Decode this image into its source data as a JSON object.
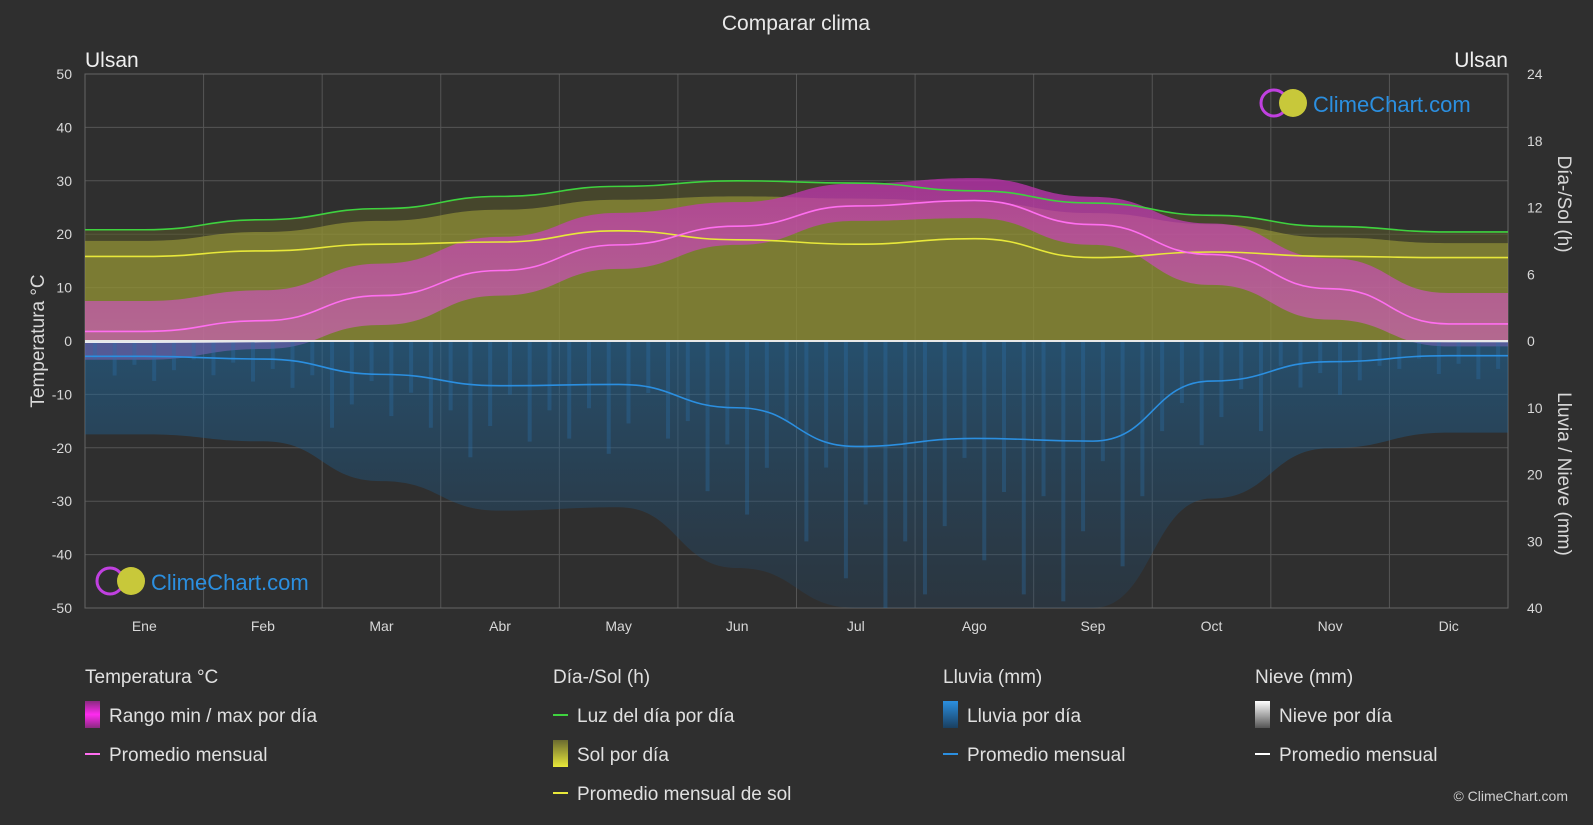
{
  "title": "Comparar clima",
  "location_left": "Ulsan",
  "location_right": "Ulsan",
  "copyright": "© ClimeChart.com",
  "brand": "ClimeChart.com",
  "colors": {
    "background": "#2f2f2f",
    "temp_band": "#d23fc8",
    "temp_avg": "#ff6ef0",
    "daylight": "#3fd23f",
    "sun_band": "#a8a83a",
    "sun_avg": "#e8e83a",
    "rain_band": "#1f5f8f",
    "rain_avg": "#2b8fe0",
    "snow_avg": "#ffffff",
    "brand": "#2b8fe0"
  },
  "chart_data": {
    "type": "line",
    "title": "Comparar clima",
    "categories": [
      "Ene",
      "Feb",
      "Mar",
      "Abr",
      "May",
      "Jun",
      "Jul",
      "Ago",
      "Sep",
      "Oct",
      "Nov",
      "Dic"
    ],
    "left_axis": {
      "label": "Temperatura °C",
      "range": [
        -50,
        50
      ],
      "ticks": [
        50,
        40,
        30,
        20,
        10,
        0,
        -10,
        -20,
        -30,
        -40,
        -50
      ]
    },
    "right_axis_top": {
      "label": "Día-/Sol (h)",
      "range": [
        0,
        24
      ],
      "ticks": [
        24,
        18,
        12,
        6,
        0
      ]
    },
    "right_axis_bottom": {
      "label": "Lluvia / Nieve (mm)",
      "range": [
        0,
        40
      ],
      "ticks": [
        0,
        10,
        20,
        30,
        40
      ]
    },
    "grid": true,
    "series": [
      {
        "name": "Luz del día por día",
        "axis": "sun_h",
        "values": [
          10.0,
          10.9,
          11.9,
          13.0,
          13.9,
          14.4,
          14.2,
          13.5,
          12.4,
          11.3,
          10.3,
          9.8
        ]
      },
      {
        "name": "Promedio mensual de sol",
        "axis": "sun_h",
        "values": [
          7.6,
          8.1,
          8.7,
          8.9,
          9.9,
          9.1,
          8.7,
          9.2,
          7.5,
          8.0,
          7.6,
          7.5
        ]
      },
      {
        "name": "Sol por día",
        "axis": "sun_h",
        "values": [
          9.0,
          9.8,
          10.8,
          11.8,
          12.7,
          13.0,
          12.8,
          12.5,
          11.5,
          10.5,
          9.3,
          8.8
        ]
      },
      {
        "name": "Promedio mensual",
        "axis": "temp",
        "values": [
          1.8,
          3.8,
          8.5,
          13.2,
          18.0,
          21.5,
          25.3,
          26.3,
          21.8,
          16.2,
          9.8,
          3.2
        ]
      },
      {
        "name": "Rango min / max por día",
        "axis": "temp",
        "min": [
          -3.5,
          -1.5,
          3.0,
          8.5,
          13.5,
          18.0,
          22.5,
          23.0,
          18.0,
          10.5,
          4.0,
          -1.0
        ],
        "max": [
          7.5,
          9.5,
          14.5,
          19.5,
          24.0,
          26.0,
          29.5,
          30.5,
          27.0,
          22.0,
          15.5,
          9.0
        ]
      },
      {
        "name": "Promedio mensual",
        "axis": "rain_mm",
        "values": [
          2.3,
          2.7,
          5.0,
          6.7,
          6.5,
          10.0,
          15.8,
          14.6,
          15.0,
          6.0,
          3.1,
          2.2
        ]
      },
      {
        "name": "Nieve por día",
        "axis": "rain_mm",
        "values": [
          0.2,
          0.1,
          0,
          0,
          0,
          0,
          0,
          0,
          0,
          0,
          0,
          0.1
        ]
      }
    ]
  },
  "legend": {
    "groups": [
      {
        "header": "Temperatura °C",
        "items": [
          {
            "label": "Rango min / max por día",
            "type": "swatch",
            "color": "#d23fc8"
          },
          {
            "label": "Promedio mensual",
            "type": "line",
            "color": "#ff6ef0"
          }
        ]
      },
      {
        "header": "Día-/Sol (h)",
        "items": [
          {
            "label": "Luz del día por día",
            "type": "line",
            "color": "#3fd23f"
          },
          {
            "label": "Sol por día",
            "type": "swatch",
            "color": "#c8c83a"
          },
          {
            "label": "Promedio mensual de sol",
            "type": "line",
            "color": "#e8e83a"
          }
        ]
      },
      {
        "header": "Lluvia (mm)",
        "items": [
          {
            "label": "Lluvia por día",
            "type": "swatch",
            "color": "#2b8fe0"
          },
          {
            "label": "Promedio mensual",
            "type": "line",
            "color": "#2b8fe0"
          }
        ]
      },
      {
        "header": "Nieve (mm)",
        "items": [
          {
            "label": "Nieve por día",
            "type": "swatch",
            "color": "#e0e0e0"
          },
          {
            "label": "Promedio mensual",
            "type": "line",
            "color": "#ffffff"
          }
        ]
      }
    ]
  }
}
